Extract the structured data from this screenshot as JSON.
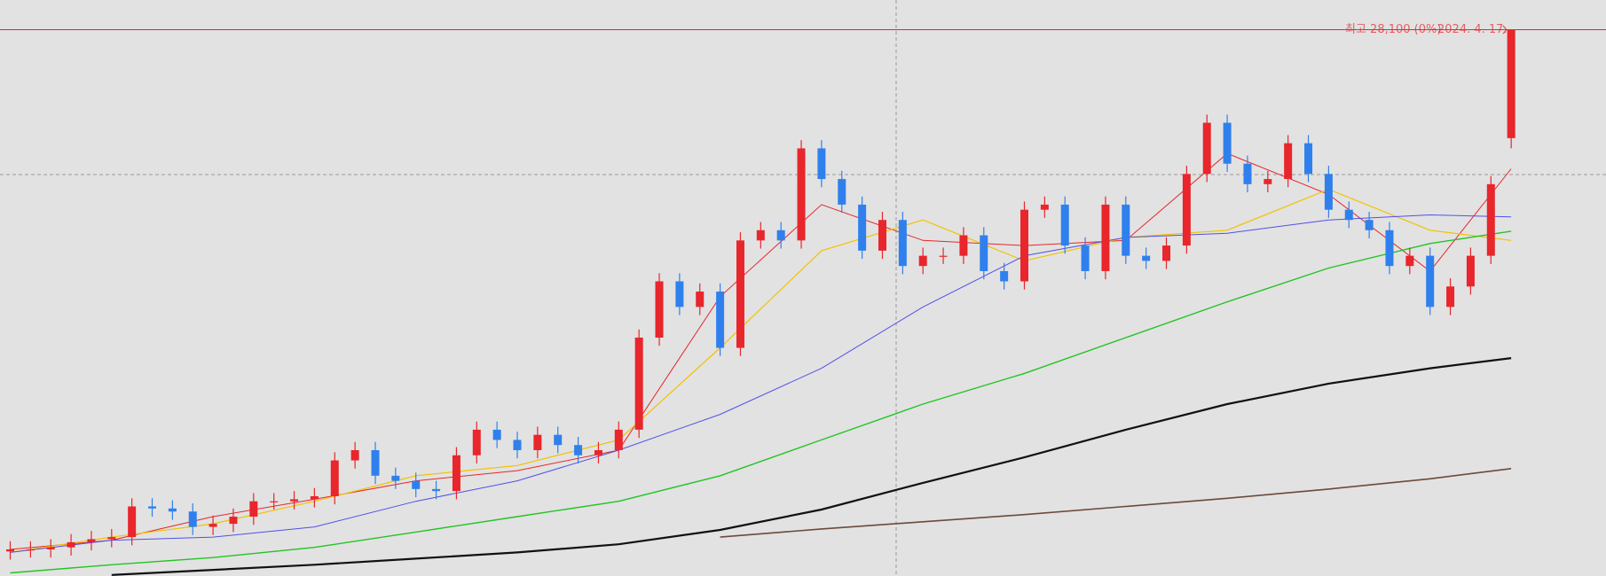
{
  "chart_data": {
    "type": "candlestick",
    "ylim": [
      6740,
      29260
    ],
    "up_color": "#e8262b",
    "down_color": "#2f80ed",
    "open": [
      7700,
      7780,
      7780,
      7860,
      8060,
      8180,
      8260,
      9460,
      9380,
      9260,
      8660,
      8780,
      9060,
      9660,
      9660,
      9740,
      9860,
      11260,
      11660,
      10660,
      10460,
      10140,
      10060,
      11460,
      12460,
      12060,
      11660,
      12260,
      11860,
      11460,
      11660,
      12460,
      16060,
      18260,
      17260,
      17860,
      15660,
      19860,
      20260,
      19860,
      23460,
      22260,
      21260,
      19460,
      20660,
      18860,
      19260,
      19260,
      20060,
      18660,
      18260,
      21060,
      21260,
      19660,
      18660,
      21260,
      19260,
      19060,
      19660,
      22460,
      24460,
      22860,
      22060,
      22260,
      23660,
      22460,
      21060,
      20660,
      20260,
      18860,
      19260,
      17260,
      18060,
      19260,
      23860
    ],
    "high": [
      8100,
      8100,
      8180,
      8380,
      8500,
      8580,
      9780,
      9780,
      9700,
      9580,
      9100,
      9380,
      9980,
      9980,
      10060,
      10180,
      11580,
      11980,
      11980,
      10980,
      10780,
      10460,
      11780,
      12780,
      12780,
      12380,
      12580,
      12580,
      12180,
      11980,
      12780,
      16380,
      18580,
      18580,
      18180,
      18180,
      20180,
      20580,
      20580,
      23780,
      23780,
      22580,
      21580,
      20980,
      20980,
      19580,
      19580,
      20380,
      20380,
      18980,
      21380,
      21580,
      21580,
      19980,
      21580,
      21580,
      19580,
      19980,
      22780,
      24780,
      24780,
      23180,
      22580,
      23980,
      23980,
      22780,
      21380,
      20980,
      20580,
      19580,
      19580,
      18380,
      19580,
      22380,
      28100
    ],
    "low": [
      7380,
      7460,
      7460,
      7540,
      7740,
      7860,
      7940,
      9060,
      8940,
      8340,
      8340,
      8460,
      8740,
      9340,
      9340,
      9420,
      9540,
      10940,
      10340,
      10140,
      9820,
      9740,
      9740,
      11140,
      11740,
      11340,
      11340,
      11540,
      11140,
      11140,
      11340,
      12140,
      15740,
      16940,
      16940,
      15340,
      15340,
      19540,
      19540,
      19540,
      21940,
      20940,
      19140,
      19140,
      18540,
      18540,
      18940,
      18940,
      18340,
      17940,
      17940,
      20740,
      19340,
      18340,
      18340,
      18940,
      18740,
      18740,
      19340,
      22140,
      22540,
      21740,
      21740,
      21940,
      22140,
      20740,
      20340,
      19940,
      18540,
      18540,
      16940,
      16940,
      17740,
      18940,
      23460
    ],
    "close": [
      7780,
      7780,
      7860,
      8060,
      8180,
      8260,
      9460,
      9380,
      9260,
      8660,
      8780,
      9060,
      9660,
      9660,
      9740,
      9860,
      11260,
      11660,
      10660,
      10460,
      10140,
      10060,
      11460,
      12460,
      12060,
      11660,
      12260,
      11860,
      11460,
      11660,
      12460,
      16060,
      18260,
      17260,
      17860,
      15660,
      19860,
      20260,
      19860,
      23460,
      22260,
      21260,
      19460,
      20660,
      18860,
      19260,
      19260,
      20060,
      18660,
      18260,
      21060,
      21260,
      19660,
      18660,
      21260,
      19260,
      19060,
      19660,
      22460,
      24460,
      22860,
      22060,
      22260,
      23660,
      22460,
      21060,
      20660,
      20260,
      18860,
      19260,
      17260,
      18060,
      19260,
      22060,
      28100
    ],
    "lines": [
      {
        "color": "#e8262b",
        "x": [
          0,
          5,
          10,
          15,
          20,
          25,
          30,
          35,
          40,
          45,
          50,
          55,
          60,
          65,
          70,
          74
        ],
        "values": [
          7780,
          8140,
          9060,
          9740,
          10460,
          10860,
          11660,
          17660,
          21260,
          19860,
          19660,
          19860,
          23260,
          21660,
          18660,
          22660
        ]
      },
      {
        "color": "#f2c200",
        "x": [
          0,
          5,
          10,
          15,
          20,
          25,
          30,
          35,
          40,
          45,
          50,
          55,
          60,
          65,
          70,
          74
        ],
        "values": [
          7660,
          8260,
          8780,
          9660,
          10660,
          11060,
          12060,
          15660,
          19460,
          20660,
          19060,
          19980,
          20260,
          21860,
          20260,
          19860
        ]
      },
      {
        "color": "#5050e8",
        "x": [
          0,
          5,
          10,
          15,
          20,
          25,
          30,
          35,
          40,
          45,
          50,
          55,
          60,
          65,
          70,
          74
        ],
        "values": [
          7660,
          8140,
          8260,
          8660,
          9660,
          10460,
          11660,
          13060,
          14860,
          17260,
          19260,
          19980,
          20140,
          20660,
          20860,
          20780
        ]
      },
      {
        "color": "#22c422",
        "x": [
          0,
          5,
          10,
          15,
          20,
          25,
          30,
          35,
          40,
          45,
          50,
          55,
          60,
          65,
          70,
          74
        ],
        "values": [
          6860,
          7180,
          7460,
          7860,
          8460,
          9060,
          9660,
          10660,
          12060,
          13460,
          14660,
          16060,
          17460,
          18780,
          19740,
          20220
        ]
      },
      {
        "color": "#111111",
        "x": [
          0,
          5,
          10,
          15,
          20,
          25,
          30,
          35,
          40,
          45,
          50,
          55,
          60,
          65,
          70,
          74
        ],
        "values": [
          null,
          6780,
          6980,
          7180,
          7420,
          7660,
          7980,
          8540,
          9340,
          10380,
          11380,
          12460,
          13460,
          14260,
          14860,
          15260
        ]
      },
      {
        "color": "#6b4a3a",
        "x": [
          0,
          5,
          10,
          15,
          20,
          25,
          30,
          35,
          40,
          45,
          50,
          55,
          60,
          65,
          70,
          74
        ],
        "values": [
          null,
          null,
          null,
          null,
          null,
          null,
          null,
          8260,
          8580,
          8860,
          9140,
          9460,
          9780,
          10140,
          10540,
          10940
        ]
      }
    ],
    "high_line": {
      "value": 28100,
      "label": "최고 28,100 (0%)",
      "date": "2024. 4. 17.",
      "color": "#e8262b"
    }
  }
}
